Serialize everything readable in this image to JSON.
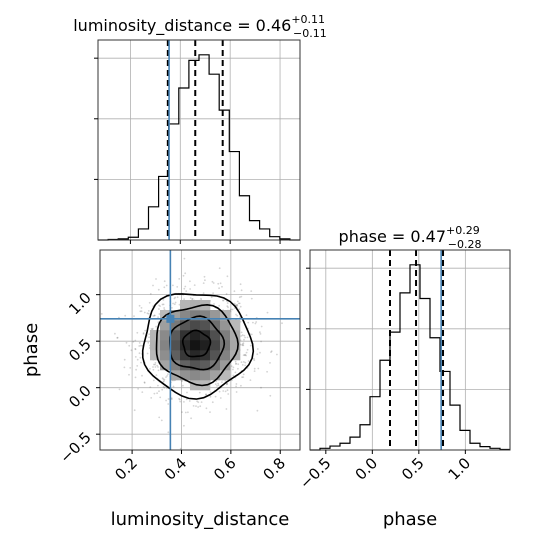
{
  "chart_data": {
    "type": "corner",
    "parameters": [
      "luminosity_distance",
      "phase"
    ],
    "truths": {
      "luminosity_distance": 0.355,
      "phase": 0.74
    },
    "colors": {
      "truth": "#4682b4",
      "hist": "#000000",
      "grid": "#b0b0b0"
    },
    "grid": true,
    "panels": [
      {
        "id": "luminosity_distance-hist",
        "type": "histogram",
        "title": {
          "main": "luminosity_distance = 0.46",
          "sup": "+0.11",
          "sub": "−0.11"
        },
        "xlim": [
          0.07,
          0.88
        ],
        "quantiles": [
          0.35,
          0.46,
          0.57
        ],
        "bins_edges": [
          0.07,
          0.1105,
          0.151,
          0.1915,
          0.232,
          0.2725,
          0.313,
          0.3535,
          0.394,
          0.4345,
          0.475,
          0.5155,
          0.556,
          0.5965,
          0.637,
          0.6775,
          0.718,
          0.7585,
          0.799,
          0.8395,
          0.88
        ],
        "counts": [
          0,
          2,
          4,
          10,
          40,
          120,
          230,
          420,
          550,
          650,
          670,
          600,
          470,
          320,
          160,
          70,
          40,
          12,
          4,
          0
        ]
      },
      {
        "id": "phase-hist",
        "type": "histogram",
        "title": {
          "main": "phase = 0.47",
          "sup": "+0.29",
          "sub": "−0.28"
        },
        "xlim": [
          -0.67,
          1.48
        ],
        "xticks": [
          -0.5,
          0.0,
          0.5,
          1.0
        ],
        "xtick_labels": [
          "−0.5",
          "0.0",
          "0.5",
          "1.0"
        ],
        "xlabel": "phase",
        "quantiles": [
          0.19,
          0.47,
          0.76
        ],
        "bins_edges": [
          -0.67,
          -0.5625,
          -0.455,
          -0.3475,
          -0.24,
          -0.1325,
          -0.025,
          0.0825,
          0.19,
          0.2975,
          0.405,
          0.5125,
          0.62,
          0.7275,
          0.835,
          0.9425,
          1.05,
          1.1575,
          1.265,
          1.3725,
          1.48
        ],
        "counts": [
          0,
          3,
          7,
          12,
          23,
          45,
          95,
          160,
          210,
          280,
          330,
          270,
          200,
          140,
          80,
          35,
          12,
          6,
          3,
          1
        ]
      },
      {
        "id": "2d-hist",
        "type": "density",
        "xlim": [
          0.07,
          0.88
        ],
        "ylim": [
          -0.67,
          1.48
        ],
        "xticks": [
          0.2,
          0.4,
          0.6,
          0.8
        ],
        "xtick_labels": [
          "0.2",
          "0.4",
          "0.6",
          "0.8"
        ],
        "yticks": [
          -0.5,
          0.0,
          0.5,
          1.0
        ],
        "ytick_labels": [
          "−0.5",
          "0.0",
          "0.5",
          "1.0"
        ],
        "xlabel": "luminosity_distance",
        "ylabel": "phase",
        "center": [
          0.46,
          0.47
        ],
        "sigma": [
          0.11,
          0.28
        ],
        "contour_levels_sigma": [
          0.5,
          1.0,
          1.5,
          2.0
        ]
      }
    ]
  }
}
